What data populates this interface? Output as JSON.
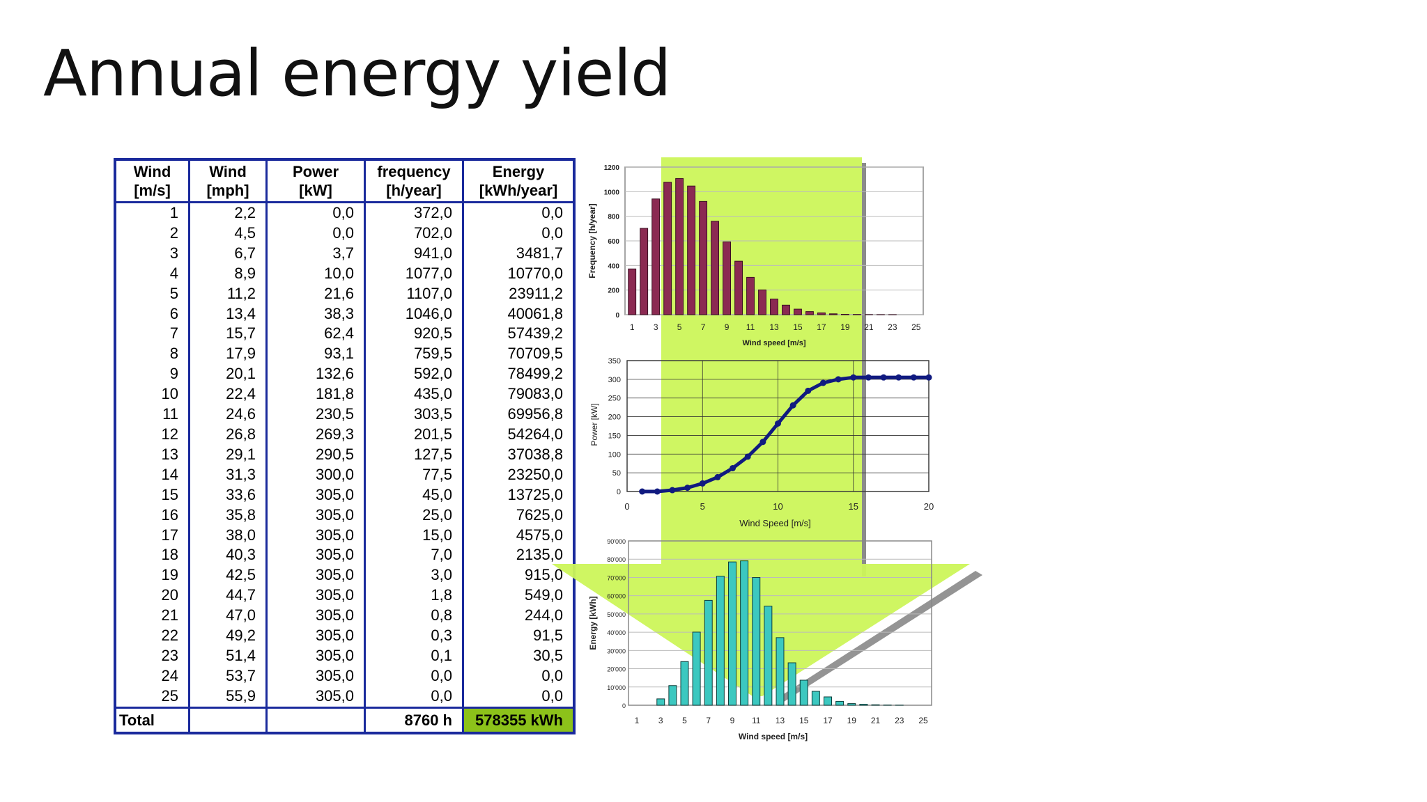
{
  "slide": {
    "title": "Annual energy yield"
  },
  "table": {
    "headers": [
      {
        "l1": "Wind",
        "l2": "[m/s]"
      },
      {
        "l1": "Wind",
        "l2": "[mph]"
      },
      {
        "l1": "Power",
        "l2": "[kW]"
      },
      {
        "l1": "frequency",
        "l2": "[h/year]"
      },
      {
        "l1": "Energy",
        "l2": "[kWh/year]"
      }
    ],
    "rows": [
      [
        "1",
        "2,2",
        "0,0",
        "372,0",
        "0,0"
      ],
      [
        "2",
        "4,5",
        "0,0",
        "702,0",
        "0,0"
      ],
      [
        "3",
        "6,7",
        "3,7",
        "941,0",
        "3481,7"
      ],
      [
        "4",
        "8,9",
        "10,0",
        "1077,0",
        "10770,0"
      ],
      [
        "5",
        "11,2",
        "21,6",
        "1107,0",
        "23911,2"
      ],
      [
        "6",
        "13,4",
        "38,3",
        "1046,0",
        "40061,8"
      ],
      [
        "7",
        "15,7",
        "62,4",
        "920,5",
        "57439,2"
      ],
      [
        "8",
        "17,9",
        "93,1",
        "759,5",
        "70709,5"
      ],
      [
        "9",
        "20,1",
        "132,6",
        "592,0",
        "78499,2"
      ],
      [
        "10",
        "22,4",
        "181,8",
        "435,0",
        "79083,0"
      ],
      [
        "11",
        "24,6",
        "230,5",
        "303,5",
        "69956,8"
      ],
      [
        "12",
        "26,8",
        "269,3",
        "201,5",
        "54264,0"
      ],
      [
        "13",
        "29,1",
        "290,5",
        "127,5",
        "37038,8"
      ],
      [
        "14",
        "31,3",
        "300,0",
        "77,5",
        "23250,0"
      ],
      [
        "15",
        "33,6",
        "305,0",
        "45,0",
        "13725,0"
      ],
      [
        "16",
        "35,8",
        "305,0",
        "25,0",
        "7625,0"
      ],
      [
        "17",
        "38,0",
        "305,0",
        "15,0",
        "4575,0"
      ],
      [
        "18",
        "40,3",
        "305,0",
        "7,0",
        "2135,0"
      ],
      [
        "19",
        "42,5",
        "305,0",
        "3,0",
        "915,0"
      ],
      [
        "20",
        "44,7",
        "305,0",
        "1,8",
        "549,0"
      ],
      [
        "21",
        "47,0",
        "305,0",
        "0,8",
        "244,0"
      ],
      [
        "22",
        "49,2",
        "305,0",
        "0,3",
        "91,5"
      ],
      [
        "23",
        "51,4",
        "305,0",
        "0,1",
        "30,5"
      ],
      [
        "24",
        "53,7",
        "305,0",
        "0,0",
        "0,0"
      ],
      [
        "25",
        "55,9",
        "305,0",
        "0,0",
        "0,0"
      ]
    ],
    "total": {
      "label": "Total",
      "frequency": "8760 h",
      "energy": "578355 kWh"
    }
  },
  "colors": {
    "table_border": "#1a2a9c",
    "total_energy_bg": "#8cc21a",
    "arrow": "#ccf55a",
    "frequency_bars": "#8b2a52",
    "power_curve": "#101a80",
    "energy_bars": "#3cc8c0"
  },
  "chart_data": [
    {
      "type": "bar",
      "ylabel": "Frequency [h/year]",
      "xlabel": "Wind speed [m/s]",
      "ylim": [
        0,
        1200
      ],
      "yticks": [
        "0",
        "200",
        "400",
        "600",
        "800",
        "1000",
        "1200"
      ],
      "xticks": [
        "1",
        "3",
        "5",
        "7",
        "9",
        "11",
        "13",
        "15",
        "17",
        "19",
        "21",
        "23",
        "25"
      ],
      "categories": [
        1,
        2,
        3,
        4,
        5,
        6,
        7,
        8,
        9,
        10,
        11,
        12,
        13,
        14,
        15,
        16,
        17,
        18,
        19,
        20,
        21,
        22,
        23,
        24,
        25
      ],
      "values": [
        372,
        702,
        941,
        1077,
        1107,
        1046,
        920.5,
        759.5,
        592,
        435,
        303.5,
        201.5,
        127.5,
        77.5,
        45,
        25,
        15,
        7,
        3,
        1.8,
        0.8,
        0.3,
        0.1,
        0,
        0
      ],
      "grid": true
    },
    {
      "type": "line",
      "ylabel": "Power [kW]",
      "xlabel": "Wind Speed [m/s]",
      "xlim": [
        0,
        20
      ],
      "ylim": [
        0,
        350
      ],
      "xticks": [
        "0",
        "5",
        "10",
        "15",
        "20"
      ],
      "yticks": [
        "0",
        "50",
        "100",
        "150",
        "200",
        "250",
        "300",
        "350"
      ],
      "x": [
        1,
        2,
        3,
        4,
        5,
        6,
        7,
        8,
        9,
        10,
        11,
        12,
        13,
        14,
        15,
        16,
        17,
        18,
        19,
        20
      ],
      "y": [
        0,
        0,
        3.7,
        10,
        21.6,
        38.3,
        62.4,
        93.1,
        132.6,
        181.8,
        230.5,
        269.3,
        290.5,
        300,
        305,
        305,
        305,
        305,
        305,
        305
      ],
      "grid": true
    },
    {
      "type": "bar",
      "ylabel": "Energy [kWh]",
      "xlabel": "Wind speed [m/s]",
      "ylim": [
        0,
        90000
      ],
      "yticks": [
        "0",
        "10'000",
        "20'000",
        "30'000",
        "40'000",
        "50'000",
        "60'000",
        "70'000",
        "80'000",
        "90'000"
      ],
      "xticks": [
        "1",
        "3",
        "5",
        "7",
        "9",
        "11",
        "13",
        "15",
        "17",
        "19",
        "21",
        "23",
        "25"
      ],
      "categories": [
        1,
        2,
        3,
        4,
        5,
        6,
        7,
        8,
        9,
        10,
        11,
        12,
        13,
        14,
        15,
        16,
        17,
        18,
        19,
        20,
        21,
        22,
        23,
        24,
        25
      ],
      "values": [
        0,
        0,
        3481.7,
        10770,
        23911.2,
        40061.8,
        57439.2,
        70709.5,
        78499.2,
        79083,
        69956.8,
        54264,
        37038.8,
        23250,
        13725,
        7625,
        4575,
        2135,
        915,
        549,
        244,
        91.5,
        30.5,
        0,
        0
      ],
      "grid": true
    }
  ]
}
